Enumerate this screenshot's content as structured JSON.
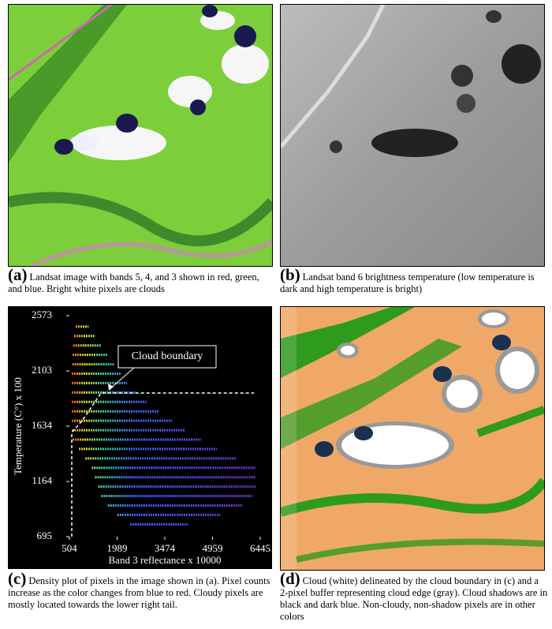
{
  "panels": [
    {
      "label": "(a)",
      "caption": "Landsat image with bands 5, 4, and 3 shown in red, green, and blue. Bright white pixels are clouds"
    },
    {
      "label": "(b)",
      "caption": "Landsat band 6 brightness temperature (low temperature is dark and high temperature is bright)"
    },
    {
      "label": "(c)",
      "caption": "Density plot of pixels in the image shown in (a). Pixel counts increase as the color changes from blue to red. Cloudy pixels are mostly located towards the lower right tail."
    },
    {
      "label": "(d)",
      "caption": "Cloud (white) delineated by the cloud boundary in (c) and a 2-pixel buffer representing cloud edge (gray). Cloud shadows are in black and dark blue. Non-cloudy, non-shadow pixels are in other colors"
    }
  ],
  "chart_data": {
    "type": "density",
    "x_label": "Band 3 reflectance x 10000",
    "y_label": "Temperature (C°) x 100",
    "annotation": "Cloud boundary",
    "xlim": [
      504,
      6445
    ],
    "ylim": [
      695,
      2573
    ],
    "xticks": [
      504,
      1989,
      3474,
      4959,
      6445
    ],
    "yticks": [
      695,
      1164,
      1634,
      2103,
      2573
    ],
    "rows": {
      "temperature": [
        2480,
        2400,
        2320,
        2240,
        2160,
        2080,
        2000,
        1920,
        1840,
        1760,
        1680,
        1600,
        1520,
        1440,
        1360,
        1280,
        1200,
        1120,
        1040,
        960,
        880,
        800
      ],
      "reflectance_min": [
        700,
        650,
        620,
        600,
        590,
        580,
        580,
        580,
        580,
        580,
        580,
        580,
        600,
        800,
        1000,
        1200,
        1300,
        1400,
        1500,
        1700,
        2000,
        2400
      ],
      "reflectance_max": [
        1100,
        1300,
        1500,
        1700,
        1900,
        2100,
        2300,
        2600,
        2900,
        3300,
        3700,
        4100,
        4600,
        5100,
        5700,
        6300,
        6300,
        6300,
        6200,
        5900,
        5200,
        4200
      ]
    },
    "boundary": {
      "x": [
        578,
        578,
        900,
        1200,
        1486,
        6249
      ],
      "y": [
        695,
        1580,
        1680,
        1800,
        1916,
        1916
      ]
    }
  }
}
